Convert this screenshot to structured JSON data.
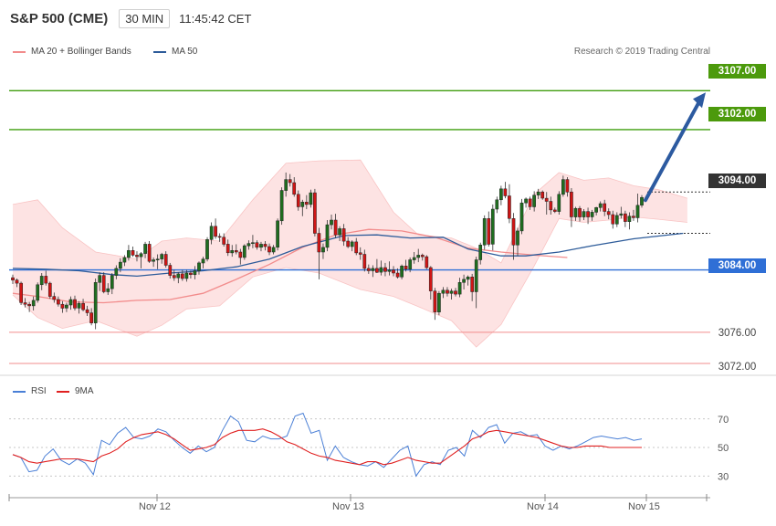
{
  "header": {
    "title": "S&P 500 (CME)",
    "interval": "30 MIN",
    "time": "11:45:42 CET"
  },
  "legend": {
    "items": [
      {
        "label": "MA 20 + Bollinger Bands",
        "color": "#f28c8c"
      },
      {
        "label": "MA 50",
        "color": "#2e5c9a"
      }
    ],
    "credit": "Research © 2019 Trading Central"
  },
  "rsi_legend": {
    "items": [
      {
        "label": "RSI",
        "color": "#4a7fd6"
      },
      {
        "label": "9MA",
        "color": "#e02020"
      }
    ]
  },
  "price_levels": [
    {
      "label": "3107.00",
      "value": 3107.0,
      "color": "#3f9d0e",
      "kind": "resistance"
    },
    {
      "label": "3102.00",
      "value": 3102.0,
      "color": "#3f9d0e",
      "kind": "resistance"
    },
    {
      "label": "3094.00",
      "value": 3094.0,
      "color": "#333333",
      "kind": "current"
    },
    {
      "label": "3084.00",
      "value": 3084.0,
      "color": "#2f6fd6",
      "kind": "pivot"
    },
    {
      "label": "3076.00",
      "value": 3076.0,
      "color": "#f28c8c",
      "kind": "support"
    },
    {
      "label": "3072.00",
      "value": 3072.0,
      "color": "#f28c8c",
      "kind": "support"
    }
  ],
  "chart_data": {
    "type": "candlestick",
    "x_labels": [
      "Nov 12",
      "Nov 13",
      "Nov 14",
      "Nov 15"
    ],
    "price_ylim": [
      3070.6,
      3111.6
    ],
    "candles": [
      [
        3083.0,
        3083.4,
        3082.2,
        3082.7
      ],
      [
        3082.7,
        3082.9,
        3081.8,
        3082.3
      ],
      [
        3082.3,
        3082.5,
        3079.5,
        3079.8
      ],
      [
        3079.8,
        3080.4,
        3079.2,
        3079.6
      ],
      [
        3079.6,
        3079.9,
        3078.6,
        3079.4
      ],
      [
        3079.4,
        3080.6,
        3078.8,
        3080.1
      ],
      [
        3080.1,
        3082.4,
        3079.8,
        3082.1
      ],
      [
        3082.1,
        3083.6,
        3081.4,
        3083.2
      ],
      [
        3083.2,
        3083.9,
        3082.0,
        3082.3
      ],
      [
        3082.3,
        3082.5,
        3080.3,
        3080.6
      ],
      [
        3080.6,
        3081.1,
        3079.8,
        3080.2
      ],
      [
        3080.2,
        3080.6,
        3079.3,
        3079.6
      ],
      [
        3079.6,
        3080.0,
        3078.5,
        3079.1
      ],
      [
        3079.1,
        3079.8,
        3078.6,
        3079.5
      ],
      [
        3079.5,
        3080.6,
        3078.9,
        3080.2
      ],
      [
        3080.2,
        3080.7,
        3078.8,
        3079.1
      ],
      [
        3079.1,
        3080.0,
        3078.4,
        3079.7
      ],
      [
        3079.7,
        3080.3,
        3078.7,
        3078.9
      ],
      [
        3078.9,
        3079.4,
        3078.1,
        3078.5
      ],
      [
        3078.5,
        3079.1,
        3076.9,
        3077.2
      ],
      [
        3077.2,
        3082.9,
        3076.4,
        3082.4
      ],
      [
        3082.4,
        3083.7,
        3081.3,
        3083.3
      ],
      [
        3083.3,
        3083.7,
        3081.0,
        3081.2
      ],
      [
        3081.2,
        3082.3,
        3080.8,
        3081.6
      ],
      [
        3081.6,
        3083.6,
        3080.9,
        3083.3
      ],
      [
        3083.3,
        3084.6,
        3082.8,
        3084.2
      ],
      [
        3084.2,
        3085.5,
        3083.7,
        3085.0
      ],
      [
        3085.0,
        3085.9,
        3084.5,
        3085.6
      ],
      [
        3085.6,
        3087.2,
        3085.2,
        3086.5
      ],
      [
        3086.5,
        3087.0,
        3085.7,
        3085.9
      ],
      [
        3085.9,
        3086.4,
        3085.1,
        3085.7
      ],
      [
        3085.7,
        3086.3,
        3084.2,
        3086.1
      ],
      [
        3086.1,
        3087.6,
        3085.5,
        3087.3
      ],
      [
        3087.3,
        3087.7,
        3084.9,
        3085.1
      ],
      [
        3085.1,
        3085.6,
        3084.4,
        3085.3
      ],
      [
        3085.3,
        3086.0,
        3084.1,
        3085.4
      ],
      [
        3085.4,
        3086.2,
        3084.8,
        3086.0
      ],
      [
        3086.0,
        3086.4,
        3084.3,
        3084.6
      ],
      [
        3084.6,
        3084.9,
        3082.9,
        3083.3
      ],
      [
        3083.3,
        3084.0,
        3082.6,
        3083.0
      ],
      [
        3083.0,
        3083.7,
        3082.3,
        3083.5
      ],
      [
        3083.5,
        3084.0,
        3082.6,
        3082.9
      ],
      [
        3082.9,
        3084.0,
        3082.5,
        3083.6
      ],
      [
        3083.6,
        3083.9,
        3082.9,
        3083.4
      ],
      [
        3083.4,
        3084.5,
        3082.8,
        3083.9
      ],
      [
        3083.9,
        3085.1,
        3083.4,
        3084.9
      ],
      [
        3084.9,
        3085.7,
        3084.2,
        3085.4
      ],
      [
        3085.4,
        3088.2,
        3085.1,
        3087.9
      ],
      [
        3087.9,
        3090.1,
        3087.3,
        3089.6
      ],
      [
        3089.6,
        3090.6,
        3088.0,
        3088.3
      ],
      [
        3088.3,
        3088.7,
        3087.6,
        3088.2
      ],
      [
        3088.2,
        3088.7,
        3087.0,
        3087.3
      ],
      [
        3087.3,
        3087.9,
        3085.8,
        3086.2
      ],
      [
        3086.2,
        3087.2,
        3085.7,
        3086.5
      ],
      [
        3086.5,
        3087.3,
        3086.0,
        3086.3
      ],
      [
        3086.3,
        3086.7,
        3084.7,
        3085.6
      ],
      [
        3085.6,
        3087.3,
        3085.3,
        3087.1
      ],
      [
        3087.1,
        3087.8,
        3086.6,
        3087.4
      ],
      [
        3087.4,
        3088.5,
        3086.8,
        3087.5
      ],
      [
        3087.5,
        3087.8,
        3086.6,
        3086.9
      ],
      [
        3086.9,
        3087.6,
        3086.4,
        3087.3
      ],
      [
        3087.3,
        3087.7,
        3086.5,
        3087.0
      ],
      [
        3087.0,
        3087.4,
        3085.9,
        3086.3
      ],
      [
        3086.3,
        3087.2,
        3086.0,
        3086.9
      ],
      [
        3086.9,
        3090.6,
        3086.5,
        3090.3
      ],
      [
        3090.3,
        3094.6,
        3089.8,
        3094.2
      ],
      [
        3094.2,
        3096.5,
        3093.4,
        3095.6
      ],
      [
        3095.6,
        3096.3,
        3094.7,
        3095.2
      ],
      [
        3095.2,
        3095.9,
        3093.4,
        3093.7
      ],
      [
        3093.7,
        3094.2,
        3091.6,
        3092.1
      ],
      [
        3092.1,
        3093.0,
        3090.9,
        3092.7
      ],
      [
        3092.7,
        3093.6,
        3091.8,
        3092.4
      ],
      [
        3092.4,
        3094.3,
        3092.0,
        3093.9
      ],
      [
        3093.9,
        3094.4,
        3088.3,
        3088.7
      ],
      [
        3088.7,
        3089.4,
        3082.8,
        3086.3
      ],
      [
        3086.3,
        3087.4,
        3085.4,
        3086.9
      ],
      [
        3086.9,
        3090.4,
        3086.4,
        3089.8
      ],
      [
        3089.8,
        3091.1,
        3089.2,
        3090.4
      ],
      [
        3090.4,
        3091.2,
        3088.1,
        3088.5
      ],
      [
        3088.5,
        3089.6,
        3087.7,
        3089.3
      ],
      [
        3089.3,
        3089.9,
        3087.1,
        3087.7
      ],
      [
        3087.7,
        3088.2,
        3086.8,
        3087.0
      ],
      [
        3087.0,
        3087.8,
        3086.4,
        3087.6
      ],
      [
        3087.6,
        3088.1,
        3085.9,
        3086.2
      ],
      [
        3086.2,
        3086.9,
        3085.3,
        3086.0
      ],
      [
        3086.0,
        3086.6,
        3083.8,
        3084.2
      ],
      [
        3084.2,
        3084.7,
        3083.5,
        3083.9
      ],
      [
        3083.9,
        3084.6,
        3083.1,
        3084.2
      ],
      [
        3084.2,
        3085.4,
        3083.6,
        3083.7
      ],
      [
        3083.7,
        3085.2,
        3083.3,
        3084.3
      ],
      [
        3084.3,
        3084.9,
        3083.2,
        3083.8
      ],
      [
        3083.8,
        3085.1,
        3083.3,
        3084.0
      ],
      [
        3084.0,
        3084.5,
        3083.2,
        3083.6
      ],
      [
        3083.6,
        3084.2,
        3082.9,
        3083.1
      ],
      [
        3083.1,
        3084.7,
        3082.8,
        3084.5
      ],
      [
        3084.5,
        3085.3,
        3083.8,
        3084.1
      ],
      [
        3084.1,
        3085.6,
        3083.7,
        3085.3
      ],
      [
        3085.3,
        3086.3,
        3084.8,
        3085.6
      ],
      [
        3085.6,
        3086.7,
        3085.0,
        3085.9
      ],
      [
        3085.9,
        3086.1,
        3085.2,
        3085.7
      ],
      [
        3085.7,
        3085.9,
        3084.1,
        3084.3
      ],
      [
        3084.3,
        3084.5,
        3080.2,
        3081.3
      ],
      [
        3081.3,
        3081.7,
        3077.6,
        3078.6
      ],
      [
        3078.6,
        3081.3,
        3078.2,
        3081.0
      ],
      [
        3081.0,
        3081.8,
        3080.4,
        3081.4
      ],
      [
        3081.4,
        3081.8,
        3080.6,
        3081.0
      ],
      [
        3081.0,
        3081.6,
        3080.2,
        3081.3
      ],
      [
        3081.3,
        3081.7,
        3080.6,
        3080.9
      ],
      [
        3080.9,
        3083.0,
        3080.5,
        3082.4
      ],
      [
        3082.4,
        3083.4,
        3081.5,
        3082.8
      ],
      [
        3082.8,
        3083.3,
        3082.0,
        3083.1
      ],
      [
        3083.1,
        3083.5,
        3080.0,
        3081.2
      ],
      [
        3081.2,
        3085.7,
        3079.1,
        3085.3
      ],
      [
        3085.3,
        3087.5,
        3084.7,
        3087.2
      ],
      [
        3087.2,
        3091.0,
        3086.6,
        3090.6
      ],
      [
        3090.6,
        3091.5,
        3087.0,
        3087.3
      ],
      [
        3087.3,
        3092.4,
        3086.5,
        3091.8
      ],
      [
        3091.8,
        3093.4,
        3091.3,
        3093.0
      ],
      [
        3093.0,
        3094.8,
        3092.3,
        3094.4
      ],
      [
        3094.4,
        3095.3,
        3093.2,
        3093.5
      ],
      [
        3093.5,
        3095.0,
        3090.0,
        3090.6
      ],
      [
        3090.6,
        3091.3,
        3085.3,
        3087.2
      ],
      [
        3087.2,
        3089.4,
        3085.8,
        3089.0
      ],
      [
        3089.0,
        3093.1,
        3088.6,
        3092.6
      ],
      [
        3092.6,
        3093.3,
        3092.0,
        3093.1
      ],
      [
        3093.1,
        3093.4,
        3091.7,
        3092.1
      ],
      [
        3092.1,
        3094.1,
        3091.5,
        3093.6
      ],
      [
        3093.6,
        3094.4,
        3093.1,
        3094.0
      ],
      [
        3094.0,
        3094.2,
        3093.0,
        3093.2
      ],
      [
        3093.2,
        3094.0,
        3091.1,
        3092.8
      ],
      [
        3092.8,
        3093.4,
        3091.1,
        3091.7
      ],
      [
        3091.7,
        3092.0,
        3091.3,
        3091.5
      ],
      [
        3091.5,
        3094.1,
        3091.1,
        3093.7
      ],
      [
        3093.7,
        3096.1,
        3093.4,
        3095.6
      ],
      [
        3095.6,
        3095.9,
        3093.4,
        3094.0
      ],
      [
        3094.0,
        3094.5,
        3089.5,
        3090.8
      ],
      [
        3090.8,
        3092.1,
        3090.3,
        3091.9
      ],
      [
        3091.9,
        3092.2,
        3090.2,
        3090.8
      ],
      [
        3090.8,
        3091.8,
        3090.4,
        3091.5
      ],
      [
        3091.5,
        3092.0,
        3089.9,
        3090.8
      ],
      [
        3090.8,
        3091.7,
        3090.3,
        3091.4
      ],
      [
        3091.4,
        3092.1,
        3091.0,
        3092.0
      ],
      [
        3092.0,
        3092.8,
        3091.5,
        3092.5
      ],
      [
        3092.5,
        3093.0,
        3090.9,
        3091.5
      ],
      [
        3091.5,
        3091.9,
        3090.5,
        3091.1
      ],
      [
        3091.1,
        3091.6,
        3089.3,
        3089.9
      ],
      [
        3089.9,
        3091.4,
        3089.5,
        3091.0
      ],
      [
        3091.0,
        3092.1,
        3090.6,
        3091.2
      ],
      [
        3091.2,
        3091.6,
        3089.5,
        3090.2
      ],
      [
        3090.2,
        3091.4,
        3089.2,
        3090.9
      ],
      [
        3090.9,
        3091.7,
        3090.3,
        3090.7
      ],
      [
        3090.7,
        3093.8,
        3090.1,
        3092.3
      ],
      [
        3092.3,
        3093.6,
        3092.0,
        3093.3
      ]
    ],
    "ma20": [
      3081.0,
      3080.6,
      3079.9,
      3079.8,
      3080.1,
      3080.2,
      3081.0,
      3082.8,
      3084.7,
      3086.9,
      3088.5,
      3089.2,
      3089.0,
      3088.2,
      3086.8,
      3086.3,
      3085.9,
      3085.6
    ],
    "ma20_x": [
      0,
      6,
      14,
      22,
      30,
      38,
      46,
      54,
      62,
      70,
      78,
      86,
      94,
      102,
      110,
      118,
      126,
      134
    ],
    "ma50": [
      3084.2,
      3084.1,
      3083.9,
      3083.4,
      3083.2,
      3083.6,
      3083.9,
      3084.4,
      3085.4,
      3087.0,
      3088.4,
      3088.5,
      3088.1,
      3088.2,
      3086.7,
      3085.8,
      3085.8,
      3086.3,
      3087.1,
      3088.0,
      3088.7
    ],
    "ma50_x": [
      0,
      8,
      16,
      24,
      30,
      38,
      46,
      54,
      62,
      70,
      80,
      88,
      96,
      104,
      110,
      118,
      124,
      132,
      140,
      150,
      162
    ],
    "bb_upper": [
      3092.4,
      3093.0,
      3089.4,
      3086.3,
      3085.4,
      3087.7,
      3088.1,
      3087.7,
      3093.0,
      3097.7,
      3098.0,
      3098.1,
      3091.4,
      3088.5,
      3088.1,
      3086.8,
      3084.9,
      3093.7,
      3096.5,
      3095.5,
      3095.8,
      3094.8,
      3094.3,
      3093.2
    ],
    "bb_lower": [
      3080.8,
      3077.9,
      3076.5,
      3077.5,
      3075.5,
      3076.9,
      3079.0,
      3079.4,
      3083.1,
      3084.3,
      3083.6,
      3081.5,
      3080.6,
      3079.3,
      3077.5,
      3074.1,
      3077.0,
      3084.5,
      3090.6,
      3090.1,
      3090.4,
      3090.8,
      3090.5,
      3090.1
    ],
    "bb_x": [
      0,
      6,
      12,
      20,
      30,
      36,
      42,
      50,
      58,
      66,
      74,
      84,
      92,
      98,
      106,
      112,
      118,
      126,
      132,
      138,
      144,
      150,
      156,
      163
    ],
    "rsi_ylim": [
      18,
      82
    ],
    "rsi_ticks": [
      30,
      50,
      70
    ],
    "rsi": [
      45,
      43,
      33,
      34,
      44,
      49,
      41,
      38,
      42,
      39,
      31,
      55,
      52,
      60,
      64,
      57,
      56,
      58,
      63,
      61,
      55,
      50,
      46,
      51,
      47,
      50,
      62,
      72,
      68,
      55,
      54,
      58,
      56,
      56,
      58,
      72,
      74,
      60,
      62,
      41,
      51,
      43,
      40,
      38,
      37,
      40,
      36,
      42,
      48,
      51,
      30,
      38,
      40,
      38,
      48,
      50,
      44,
      62,
      57,
      64,
      66,
      53,
      60,
      61,
      58,
      59,
      51,
      48,
      51,
      49,
      51,
      54,
      57,
      58,
      57,
      56,
      57,
      55,
      56
    ],
    "rsi_ma": [
      45,
      43,
      40,
      39,
      40,
      41,
      42,
      42,
      42,
      41,
      40,
      44,
      46,
      49,
      54,
      57,
      59,
      60,
      61,
      59,
      56,
      52,
      48,
      49,
      50,
      52,
      57,
      60,
      62,
      62,
      62,
      63,
      61,
      58,
      54,
      52,
      49,
      46,
      44,
      43,
      41,
      40,
      39,
      38,
      40,
      40,
      38,
      39,
      41,
      43,
      41,
      40,
      39,
      39,
      43,
      47,
      51,
      56,
      58,
      61,
      62,
      61,
      60,
      59,
      58,
      57,
      55,
      53,
      51,
      50,
      50,
      51,
      51,
      51,
      50,
      50,
      50,
      50,
      50
    ]
  }
}
